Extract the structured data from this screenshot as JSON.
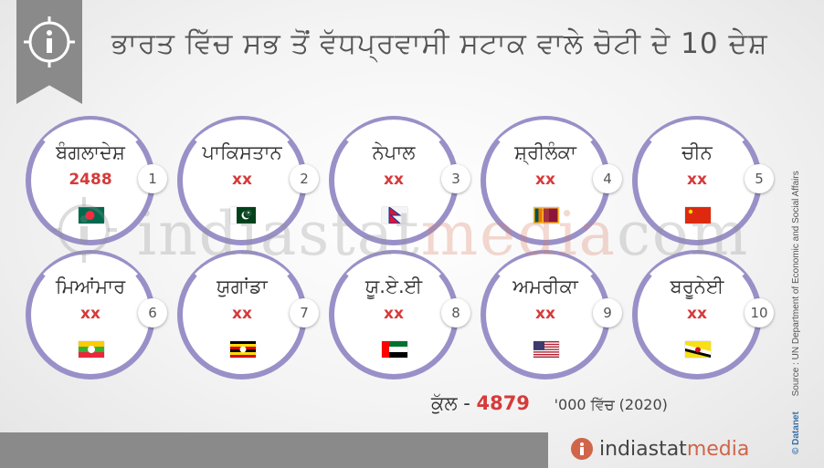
{
  "header": {
    "title": "ਭਾਰਤ ਵਿੱਚ ਸਭ ਤੋਂ ਵੱਧਪ੍ਰਵਾਸੀ ਸਟਾਕ ਵਾਲੇ ਚੋਟੀ ਦੇ 10 ਦੇਸ਼",
    "info_icon": "info-icon"
  },
  "watermark": {
    "part1": "indiastat",
    "part2": "media",
    "part3": "com"
  },
  "chart_data": {
    "type": "table",
    "title": "ਭਾਰਤ ਵਿੱਚ ਸਭ ਤੋਂ ਵੱਧਪ੍ਰਵਾਸੀ ਸਟਾਕ ਵਾਲੇ ਚੋਟੀ ਦੇ 10 ਦੇਸ਼",
    "countries": [
      {
        "rank": "1",
        "name": "ਬੰਗਲਾਦੇਸ਼",
        "value": "2488",
        "flag": "bangladesh-flag"
      },
      {
        "rank": "2",
        "name": "ਪਾਕਿਸਤਾਨ",
        "value": "xx",
        "flag": "pakistan-flag"
      },
      {
        "rank": "3",
        "name": "ਨੇਪਾਲ",
        "value": "xx",
        "flag": "nepal-flag"
      },
      {
        "rank": "4",
        "name": "ਸ਼੍ਰੀਲੰਕਾ",
        "value": "xx",
        "flag": "sri-lanka-flag"
      },
      {
        "rank": "5",
        "name": "ਚੀਨ",
        "value": "xx",
        "flag": "china-flag"
      },
      {
        "rank": "6",
        "name": "ਮਿਆਂਮਾਰ",
        "value": "xx",
        "flag": "myanmar-flag"
      },
      {
        "rank": "7",
        "name": "ਯੁਗਾਂਡਾ",
        "value": "xx",
        "flag": "uganda-flag"
      },
      {
        "rank": "8",
        "name": "ਯੂ.ਏ.ਈ",
        "value": "xx",
        "flag": "uae-flag"
      },
      {
        "rank": "9",
        "name": "ਅਮਰੀਕਾ",
        "value": "xx",
        "flag": "usa-flag"
      },
      {
        "rank": "10",
        "name": "ਬਰੂਨੇਈ",
        "value": "xx",
        "flag": "brunei-flag"
      }
    ],
    "total_label": "ਕੁੱਲ -",
    "total_value": "4879",
    "unit": "'000 ਵਿੱਚ (2020)"
  },
  "colors": {
    "ring": "#9a90c8",
    "value": "#d63a3a",
    "bar": "#8a8a8a",
    "accent": "#d0654a"
  },
  "footer": {
    "source": "Source : UN Department of Economic and Social Affairs",
    "datanet": "© Datanet",
    "brand_part1": "indiastat",
    "brand_part2": "media"
  }
}
